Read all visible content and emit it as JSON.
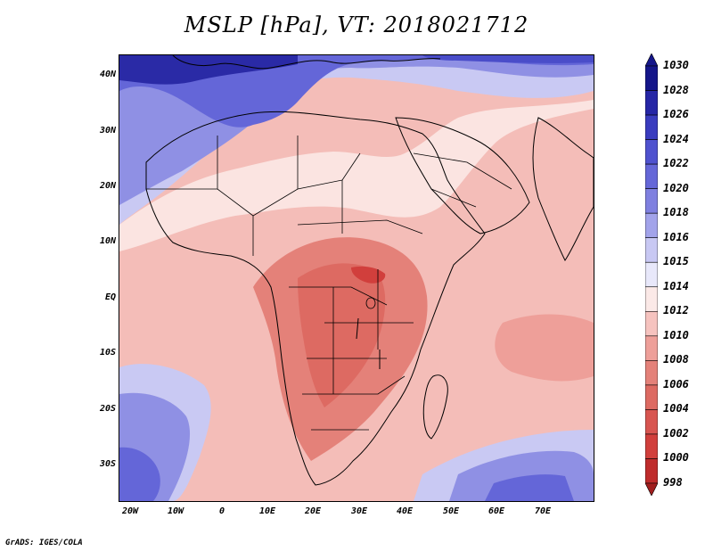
{
  "title": "MSLP [hPa], VT: 2018021712",
  "footer": "GrADS: IGES/COLA",
  "map": {
    "lat_ticks": [
      "40N",
      "30N",
      "20N",
      "10N",
      "EQ",
      "10S",
      "20S",
      "30S"
    ],
    "lon_ticks": [
      "20W",
      "10W",
      "0",
      "10E",
      "20E",
      "30E",
      "40E",
      "50E",
      "60E",
      "70E"
    ]
  },
  "colorbar": {
    "levels": [
      "1030",
      "1028",
      "1026",
      "1024",
      "1022",
      "1020",
      "1018",
      "1016",
      "1015",
      "1014",
      "1012",
      "1010",
      "1008",
      "1006",
      "1004",
      "1002",
      "1000",
      "998"
    ],
    "colors": {
      "1030": "#15168a",
      "1028": "#2626a6",
      "1026": "#3a3cbf",
      "1024": "#4f52cf",
      "1022": "#6567d8",
      "1020": "#7f80e0",
      "1018": "#a2a3ea",
      "1016": "#c8c8f3",
      "1015": "#e8e8fa",
      "1014": "#fbe9e7",
      "1012": "#f6c3bf",
      "1010": "#ee9f99",
      "1008": "#e48179",
      "1006": "#dd6a62",
      "1004": "#d85550",
      "1002": "#d13f3c",
      "1000": "#bf2c2c",
      "998": "#a01e1e"
    }
  }
}
